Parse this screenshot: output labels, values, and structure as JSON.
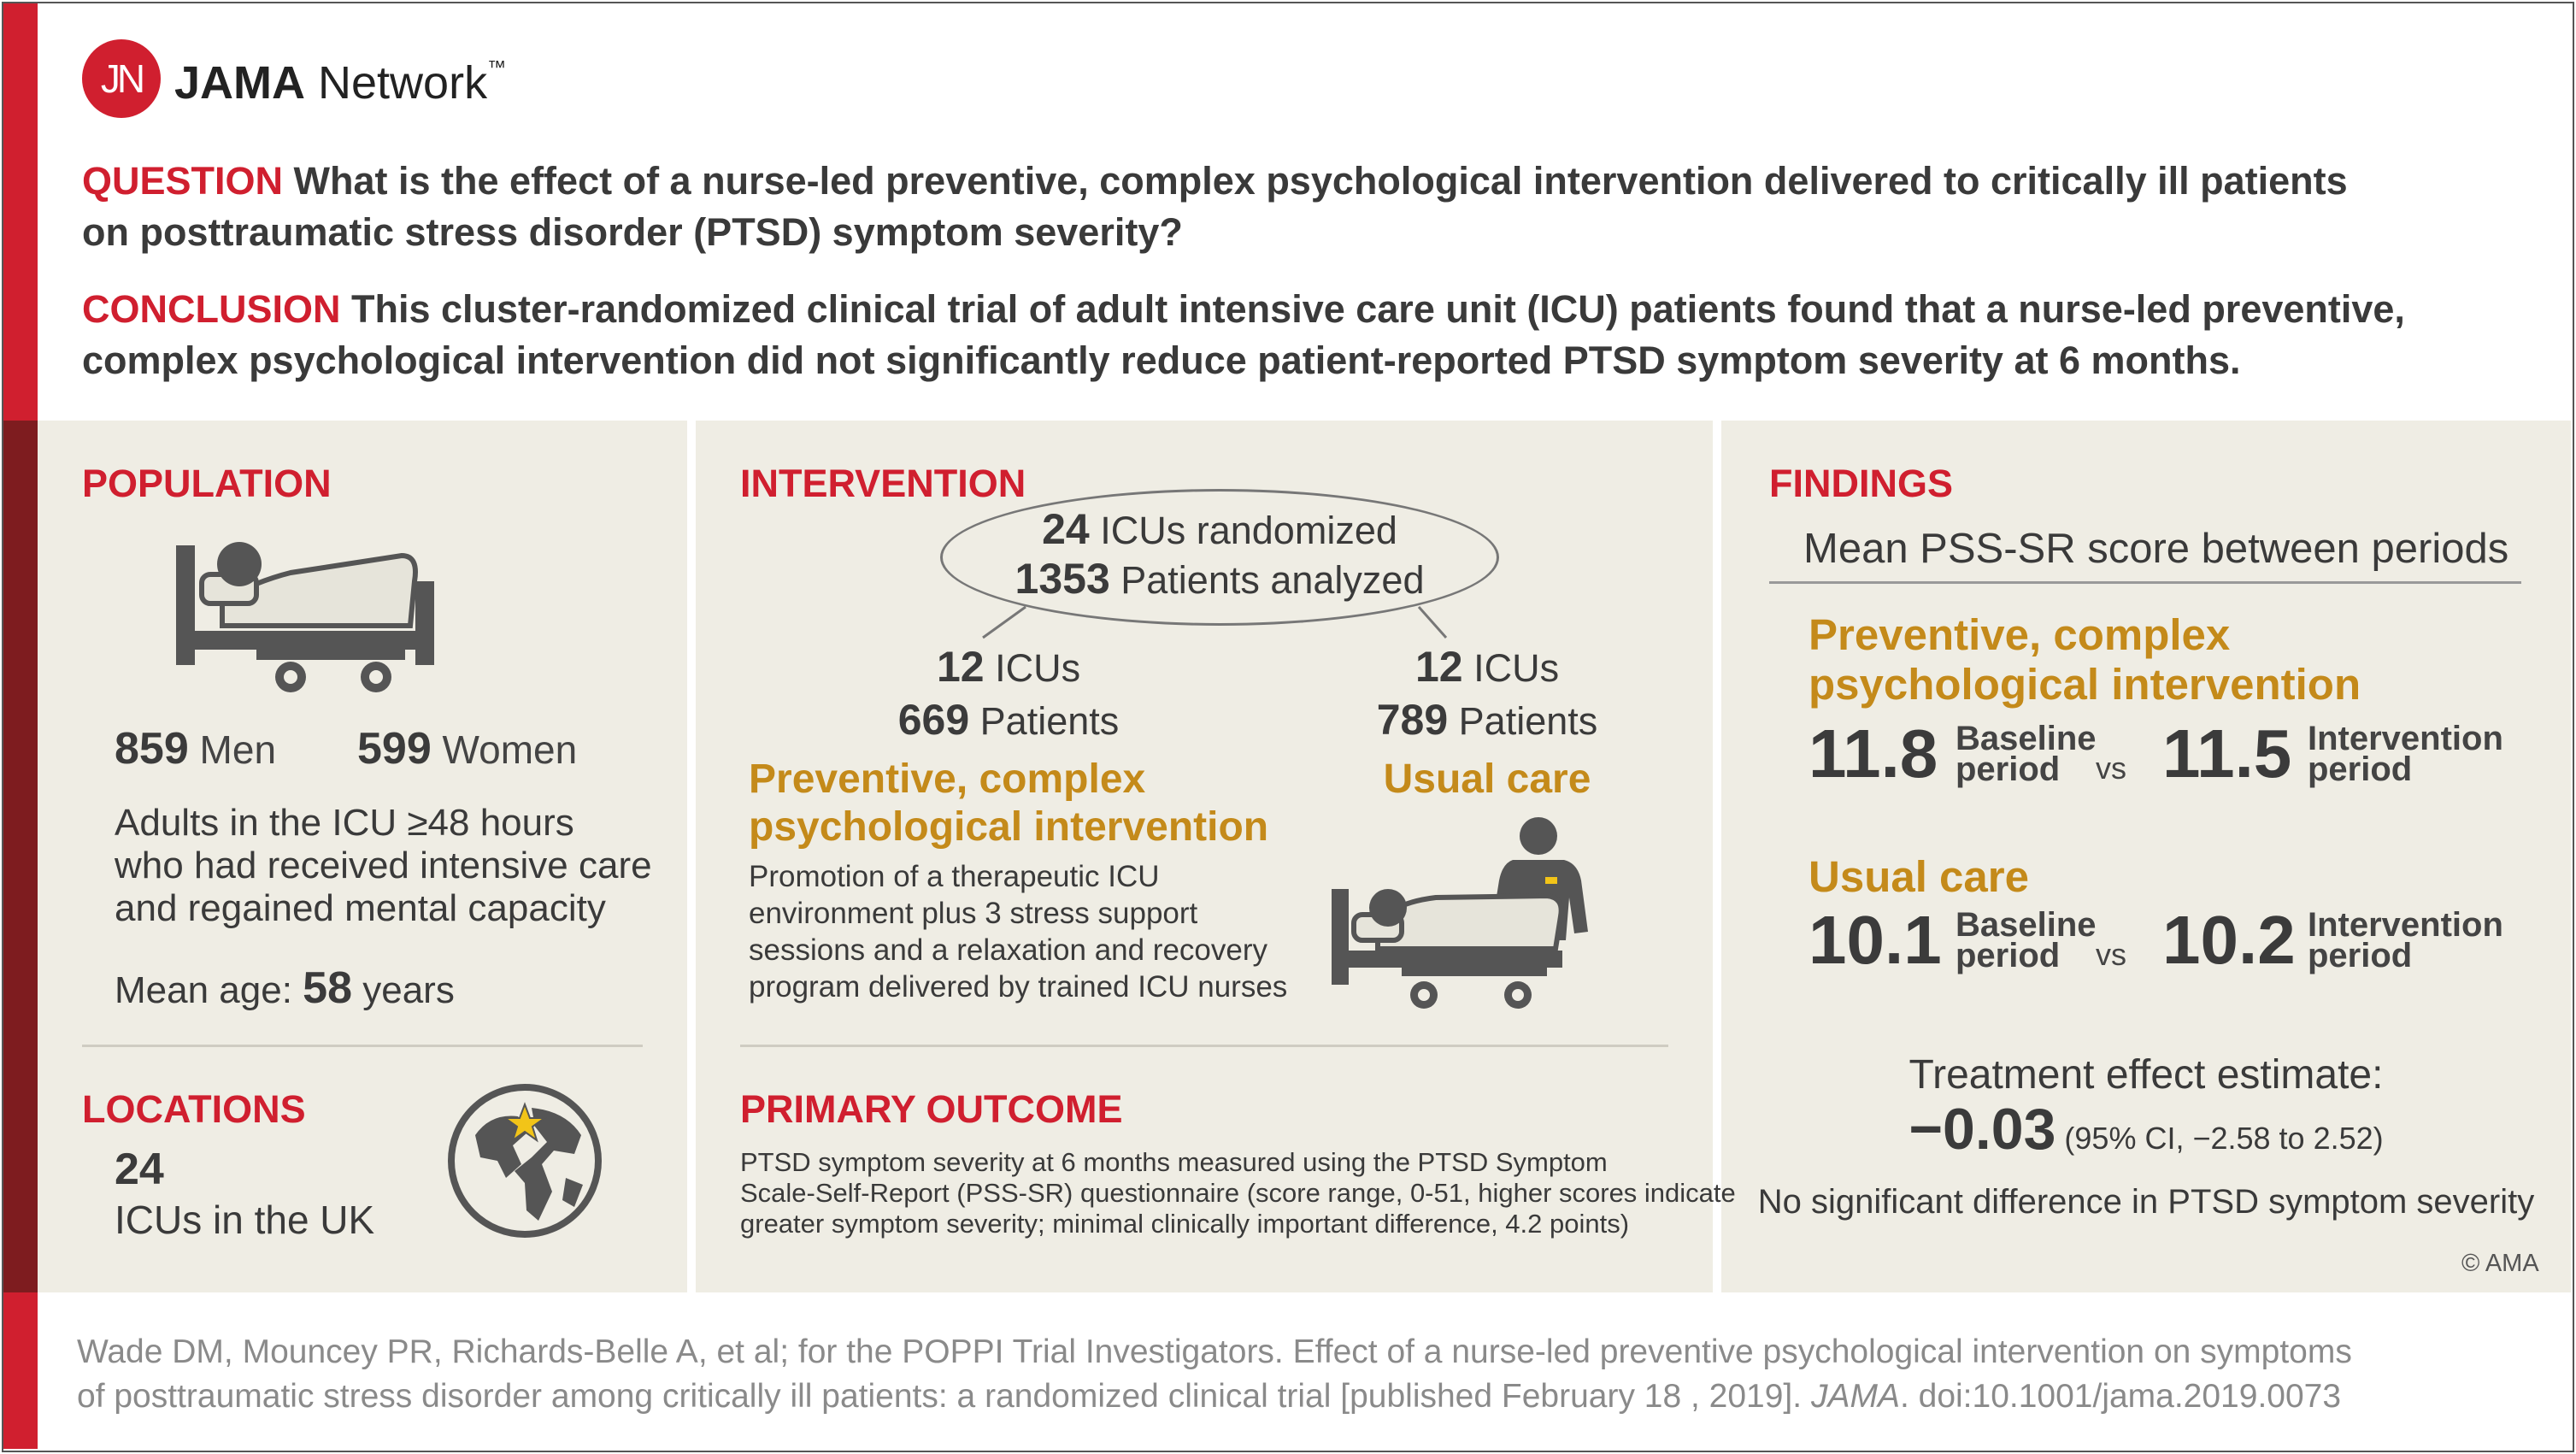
{
  "brand": {
    "logo_mark": "JN",
    "name_bold": "JAMA",
    "name_rest": " Network",
    "trademark": "™"
  },
  "question": {
    "label": "QUESTION",
    "line1": " What is the effect of a nurse-led preventive, complex psychological intervention delivered to critically ill patients",
    "line2": "on posttraumatic stress disorder (PTSD) symptom severity?"
  },
  "conclusion": {
    "label": "CONCLUSION",
    "line1": " This cluster-randomized clinical trial of adult intensive care unit (ICU) patients found that a nurse-led preventive,",
    "line2": "complex psychological intervention did not significantly reduce patient-reported PTSD symptom severity at 6 months."
  },
  "population": {
    "heading": "POPULATION",
    "men_count": "859",
    "men_label": " Men",
    "women_count": "599",
    "women_label": " Women",
    "desc1": "Adults in the ICU ≥48 hours",
    "desc2": "who had received intensive care",
    "desc3": "and regained mental capacity",
    "mean_age_label": "Mean age: ",
    "mean_age_value": "58",
    "mean_age_unit": " years"
  },
  "locations": {
    "heading": "LOCATIONS",
    "count": "24",
    "label": "ICUs in the UK"
  },
  "intervention": {
    "heading": "INTERVENTION",
    "icus_num": "24",
    "icus_label": " ICUs randomized",
    "patients_num": "1353",
    "patients_label": " Patients analyzed",
    "left": {
      "icus_num": "12",
      "icus_label": " ICUs",
      "patients_num": "669",
      "patients_label": " Patients",
      "title1": "Preventive, complex",
      "title2": "psychological intervention",
      "desc1": "Promotion of a therapeutic ICU",
      "desc2": "environment plus 3 stress support",
      "desc3": "sessions and a relaxation and recovery",
      "desc4": "program delivered by trained ICU nurses"
    },
    "right": {
      "icus_num": "12",
      "icus_label": " ICUs",
      "patients_num": "789",
      "patients_label": " Patients",
      "title": "Usual care"
    }
  },
  "primary_outcome": {
    "heading": "PRIMARY OUTCOME",
    "line1": "PTSD symptom severity at 6 months measured using the PTSD Symptom",
    "line2": "Scale-Self-Report (PSS-SR) questionnaire (score range, 0-51, higher scores indicate",
    "line3": "greater symptom severity; minimal clinically important difference, 4.2 points)"
  },
  "findings": {
    "heading": "FINDINGS",
    "subtitle": "Mean PSS-SR score between periods",
    "group1": {
      "title1": "Preventive, complex",
      "title2": "psychological intervention",
      "baseline": "11.8",
      "intervention": "11.5"
    },
    "group2": {
      "title": "Usual care",
      "baseline": "10.1",
      "intervention": "10.2"
    },
    "baseline_label1": "Baseline",
    "baseline_label2": "period",
    "intervention_label1": "Intervention",
    "intervention_label2": "period",
    "vs": "vs",
    "effect_label": "Treatment effect estimate:",
    "effect_value": "−0.03",
    "effect_ci": " (95% CI, −2.58 to 2.52)",
    "effect_note": "No significant difference in PTSD symptom severity"
  },
  "copyright": "© AMA",
  "citation": {
    "line1": "Wade DM, Mouncey PR, Richards-Belle A, et al; for the POPPI Trial Investigators. Effect of a nurse-led preventive psychological intervention on symptoms",
    "line2_pre": "of posttraumatic stress disorder among critically ill patients: a randomized clinical trial [published February 18 , 2019]. ",
    "journal": "JAMA",
    "line2_post": ". doi:10.1001/jama.2019.0073"
  },
  "colors": {
    "accent_red": "#d01f2f",
    "gold": "#c48a1a",
    "panel": "#efede4",
    "dark_red": "#7e1c1f"
  }
}
